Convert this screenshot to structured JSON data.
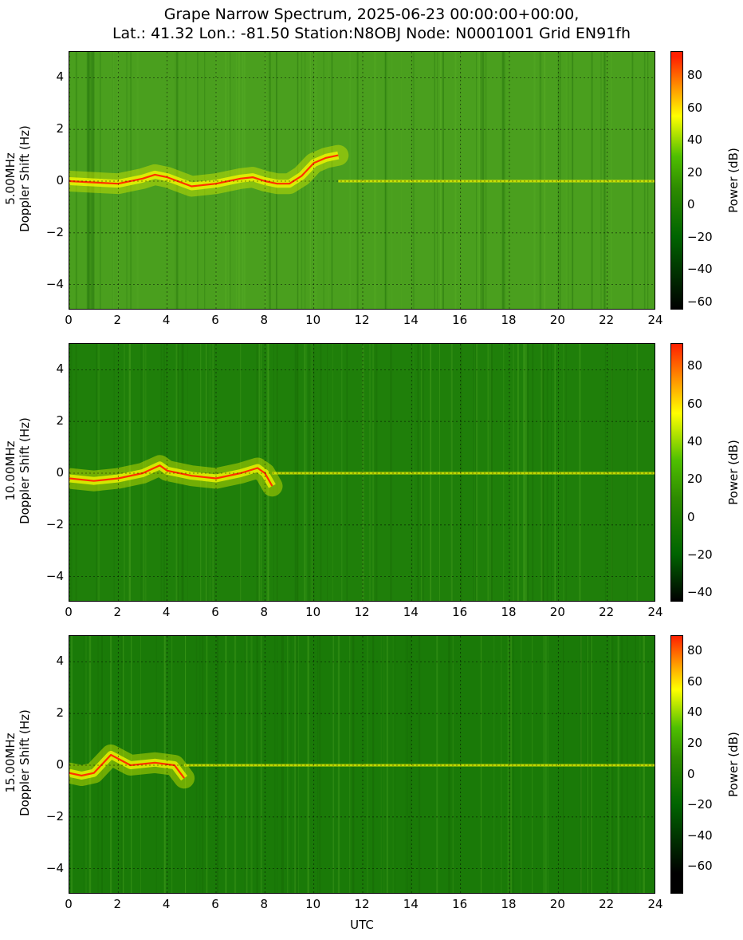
{
  "title_line1": "Grape Narrow Spectrum, 2025-06-23 00:00:00+00:00,",
  "title_line2": "Lat.: 41.32 Lon.: -81.50 Station:N8OBJ Node: N0001001 Grid EN91fh",
  "xlabel": "UTC",
  "colorbar_label": "Power (dB)",
  "colors": {
    "cmap": [
      "#000000",
      "#006400",
      "#2e8b00",
      "#4fbf00",
      "#ffff00",
      "#ffa500",
      "#ff2000"
    ]
  },
  "chart_data": [
    {
      "type": "heatmap",
      "ylabel_line1": "5.00MHz",
      "ylabel_line2": "Doppler Shift (Hz)",
      "xlim": [
        0,
        24
      ],
      "ylim": [
        -5,
        5
      ],
      "x_ticks": [
        "0",
        "2",
        "4",
        "6",
        "8",
        "10",
        "12",
        "14",
        "16",
        "18",
        "20",
        "22",
        "24"
      ],
      "y_ticks": [
        "4",
        "2",
        "0",
        "−2",
        "−4"
      ],
      "grid": true,
      "colorbar_range": [
        -65,
        95
      ],
      "colorbar_ticks": [
        "80",
        "60",
        "40",
        "20",
        "0",
        "−20",
        "−40",
        "−60"
      ],
      "background": "#4a9f1e",
      "trace": [
        [
          0,
          0
        ],
        [
          1,
          -0.05
        ],
        [
          2,
          -0.1
        ],
        [
          3,
          0.1
        ],
        [
          3.5,
          0.25
        ],
        [
          4,
          0.15
        ],
        [
          5,
          -0.2
        ],
        [
          6,
          -0.1
        ],
        [
          7,
          0.1
        ],
        [
          7.5,
          0.15
        ],
        [
          8,
          0.0
        ],
        [
          8.5,
          -0.1
        ],
        [
          9,
          -0.1
        ],
        [
          9.5,
          0.2
        ],
        [
          10,
          0.7
        ],
        [
          10.5,
          0.9
        ],
        [
          11,
          1.0
        ]
      ],
      "carrier_end": 24
    },
    {
      "type": "heatmap",
      "ylabel_line1": "10.00MHz",
      "ylabel_line2": "Doppler Shift (Hz)",
      "xlim": [
        0,
        24
      ],
      "ylim": [
        -5,
        5
      ],
      "x_ticks": [
        "0",
        "2",
        "4",
        "6",
        "8",
        "10",
        "12",
        "14",
        "16",
        "18",
        "20",
        "22",
        "24"
      ],
      "y_ticks": [
        "4",
        "2",
        "0",
        "−2",
        "−4"
      ],
      "grid": true,
      "colorbar_range": [
        -45,
        92
      ],
      "colorbar_ticks": [
        "80",
        "60",
        "40",
        "20",
        "0",
        "−20",
        "−40"
      ],
      "background": "#1f7f0a",
      "trace": [
        [
          0,
          -0.2
        ],
        [
          1,
          -0.3
        ],
        [
          2,
          -0.2
        ],
        [
          3,
          0.0
        ],
        [
          3.7,
          0.3
        ],
        [
          4,
          0.1
        ],
        [
          5,
          -0.1
        ],
        [
          6,
          -0.2
        ],
        [
          7,
          0.0
        ],
        [
          7.7,
          0.2
        ],
        [
          8,
          0.0
        ],
        [
          8.3,
          -0.5
        ]
      ],
      "carrier_end": 24
    },
    {
      "type": "heatmap",
      "ylabel_line1": "15.00MHz",
      "ylabel_line2": "Doppler Shift (Hz)",
      "xlim": [
        0,
        24
      ],
      "ylim": [
        -5,
        5
      ],
      "x_ticks": [
        "0",
        "2",
        "4",
        "6",
        "8",
        "10",
        "12",
        "14",
        "16",
        "18",
        "20",
        "22",
        "24"
      ],
      "y_ticks": [
        "4",
        "2",
        "0",
        "−2",
        "−4"
      ],
      "grid": true,
      "colorbar_range": [
        -78,
        90
      ],
      "colorbar_ticks": [
        "80",
        "60",
        "40",
        "20",
        "0",
        "−20",
        "−40",
        "−60"
      ],
      "background": "#1a7a08",
      "trace": [
        [
          0,
          -0.3
        ],
        [
          0.5,
          -0.4
        ],
        [
          1,
          -0.3
        ],
        [
          1.7,
          0.4
        ],
        [
          2.5,
          0.0
        ],
        [
          3.5,
          0.1
        ],
        [
          4.3,
          0.0
        ],
        [
          4.7,
          -0.5
        ]
      ],
      "carrier_end": 24
    }
  ]
}
